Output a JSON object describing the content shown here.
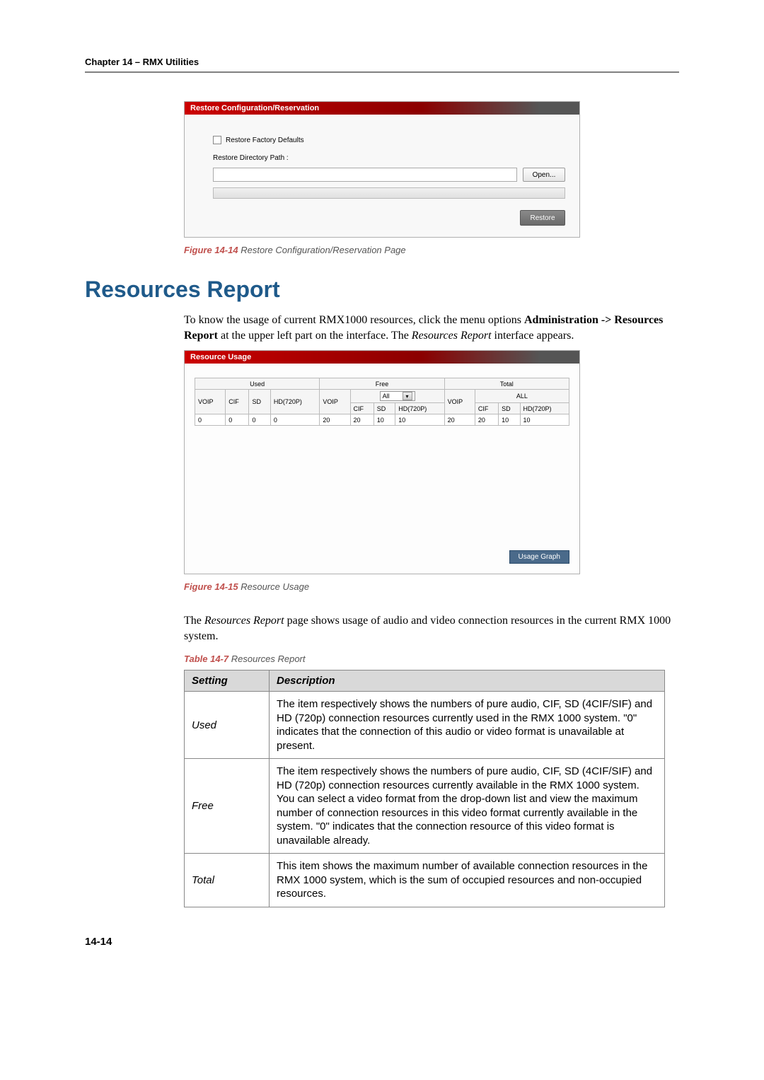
{
  "chapter_header": "Chapter 14 – RMX Utilities",
  "restore_panel": {
    "title": "Restore Configuration/Reservation",
    "checkbox_label": "Restore Factory Defaults",
    "path_label": "Restore Directory Path :",
    "open_btn": "Open...",
    "restore_btn": "Restore"
  },
  "fig1": {
    "num": "Figure 14-14",
    "caption": "Restore Configuration/Reservation Page"
  },
  "section_title": "Resources Report",
  "para1_a": "To know the usage of current RMX1000 resources, click the menu options ",
  "para1_b": "Administration -> Resources Report",
  "para1_c": " at the upper left part on the interface. The ",
  "para1_d": "Resources Report",
  "para1_e": " interface appears.",
  "ru": {
    "title": "Resource Usage",
    "groups": {
      "used": "Used",
      "free": "Free",
      "total": "Total"
    },
    "free_dd": "All",
    "total_sub": "ALL",
    "cols": {
      "voip": "VOIP",
      "cif": "CIF",
      "sd": "SD",
      "hd": "HD(720P)"
    },
    "values": {
      "used": {
        "voip": "0",
        "cif": "0",
        "sd": "0",
        "hd": "0"
      },
      "free": {
        "voip": "20",
        "cif": "20",
        "sd": "10",
        "hd": "10"
      },
      "total": {
        "voip": "20",
        "cif": "20",
        "sd": "10",
        "hd": "10"
      }
    },
    "graph_btn": "Usage Graph"
  },
  "fig2": {
    "num": "Figure 14-15",
    "caption": "Resource Usage"
  },
  "para2_a": "The ",
  "para2_b": "Resources Report",
  "para2_c": " page shows usage of audio and video connection resources in the current RMX 1000 system.",
  "table_caption": {
    "num": "Table 14-7",
    "name": "Resources Report"
  },
  "settings_table": {
    "hdr_setting": "Setting",
    "hdr_desc": "Description",
    "rows": [
      {
        "name": "Used",
        "desc": "The item respectively shows the numbers of pure audio, CIF, SD (4CIF/SIF) and HD (720p) connection resources currently used in the RMX 1000 system. \"0\" indicates that the connection of this audio or video format is unavailable at present."
      },
      {
        "name": "Free",
        "desc": "The item respectively shows the numbers of pure audio, CIF, SD (4CIF/SIF) and HD (720p) connection resources currently available in the RMX 1000 system. You can select a video format from the drop-down list and view the maximum number of connection resources in this video format currently available in the system. \"0\" indicates that the connection resource of this video format is unavailable already."
      },
      {
        "name": "Total",
        "desc": "This item shows the maximum number of available connection resources in the RMX 1000 system, which is the sum of occupied resources and non-occupied resources."
      }
    ]
  },
  "page_number": "14-14"
}
